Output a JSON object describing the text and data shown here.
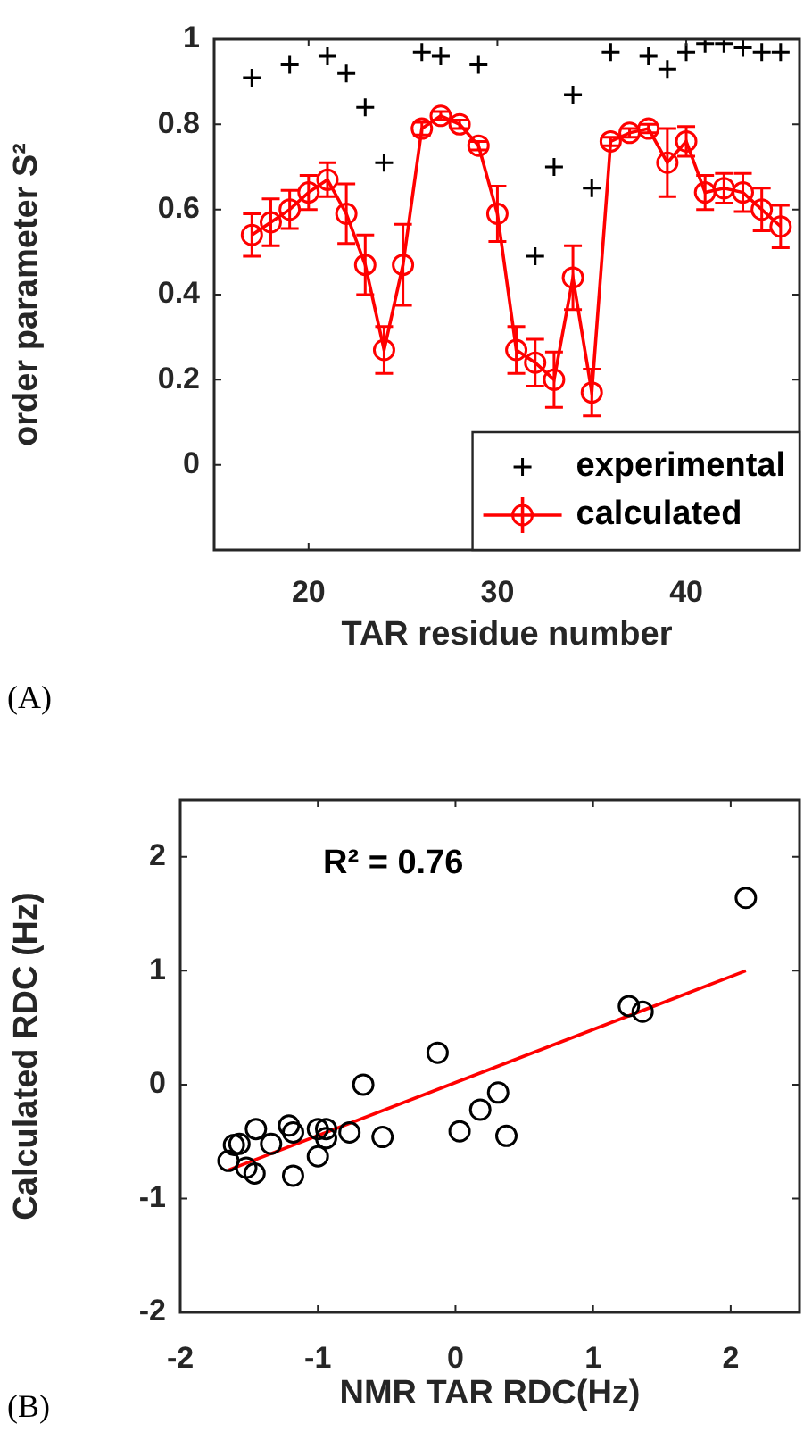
{
  "chart_data": [
    {
      "type": "line",
      "xlabel": "TAR residue number",
      "ylabel": "order parameter S²",
      "annotations": [
        "(A)"
      ],
      "x": [
        17,
        18,
        19,
        20,
        21,
        22,
        23,
        24,
        25,
        26,
        27,
        28,
        29,
        30,
        31,
        32,
        33,
        34,
        35,
        36,
        37,
        38,
        39,
        40,
        41,
        42,
        43,
        44,
        45
      ],
      "series": [
        {
          "name": "experimental",
          "type": "scatter",
          "color": "#000000",
          "marker": "cross",
          "values": [
            0.91,
            null,
            0.94,
            null,
            0.96,
            0.92,
            0.84,
            0.71,
            null,
            0.97,
            0.96,
            null,
            0.94,
            null,
            null,
            0.49,
            0.7,
            0.87,
            0.65,
            0.97,
            null,
            0.96,
            0.93,
            0.97,
            0.99,
            0.99,
            0.98,
            0.97,
            0.97
          ]
        },
        {
          "name": "calculated",
          "color": "#ff0000",
          "marker": "circle",
          "values": [
            0.54,
            0.57,
            0.6,
            0.64,
            0.67,
            0.59,
            0.47,
            0.27,
            0.47,
            0.79,
            0.82,
            0.8,
            0.75,
            0.59,
            0.27,
            0.24,
            0.2,
            0.44,
            0.17,
            0.76,
            0.78,
            0.79,
            0.71,
            0.76,
            0.64,
            0.65,
            0.64,
            0.6,
            0.56
          ],
          "errors": [
            0.05,
            0.055,
            0.045,
            0.04,
            0.04,
            0.07,
            0.07,
            0.055,
            0.095,
            0.015,
            0.01,
            0.01,
            0.01,
            0.065,
            0.055,
            0.055,
            0.065,
            0.075,
            0.055,
            0.01,
            0.01,
            0.01,
            0.08,
            0.035,
            0.04,
            0.035,
            0.045,
            0.05,
            0.05
          ]
        }
      ],
      "xlim": [
        15,
        46
      ],
      "xticks": [
        20,
        30,
        40
      ],
      "ylim": [
        -0.2,
        1
      ],
      "yticks": [
        0,
        0.2,
        0.4,
        0.6,
        0.8,
        1
      ],
      "grid": false,
      "legend": "bottom right"
    },
    {
      "type": "scatter",
      "xlabel": "NMR TAR RDC(Hz)",
      "ylabel": "Calculated RDC (Hz)",
      "annotations": [
        "R² = 0.76",
        "(B)"
      ],
      "series": [
        {
          "color": "#000000",
          "marker": "circle",
          "x": [
            2.11,
            1.26,
            1.36,
            -0.13,
            -0.67,
            0.31,
            0.18,
            0.03,
            0.37,
            -0.53,
            -0.77,
            -0.94,
            -0.94,
            -1.0,
            -1.0,
            -1.18,
            -1.21,
            -1.18,
            -1.34,
            -1.45,
            -1.46,
            -1.52,
            -1.57,
            -1.61,
            -1.65
          ],
          "values": [
            1.64,
            0.69,
            0.64,
            0.28,
            0.0,
            -0.07,
            -0.22,
            -0.41,
            -0.45,
            -0.46,
            -0.42,
            -0.39,
            -0.47,
            -0.39,
            -0.63,
            -0.42,
            -0.36,
            -0.8,
            -0.52,
            -0.39,
            -0.78,
            -0.73,
            -0.52,
            -0.53,
            -0.67
          ]
        },
        {
          "type": "line",
          "color": "#ff0000",
          "marker": "none",
          "x": [
            -1.65,
            2.11
          ],
          "values": [
            -0.75,
            1.0
          ]
        }
      ],
      "xlim": [
        -2,
        2.5
      ],
      "xticks": [
        -2,
        -1,
        0,
        1,
        2
      ],
      "ylim": [
        -2,
        2.5
      ],
      "yticks": [
        -2,
        -1,
        0,
        1,
        2
      ],
      "grid": false,
      "legend": false
    }
  ]
}
